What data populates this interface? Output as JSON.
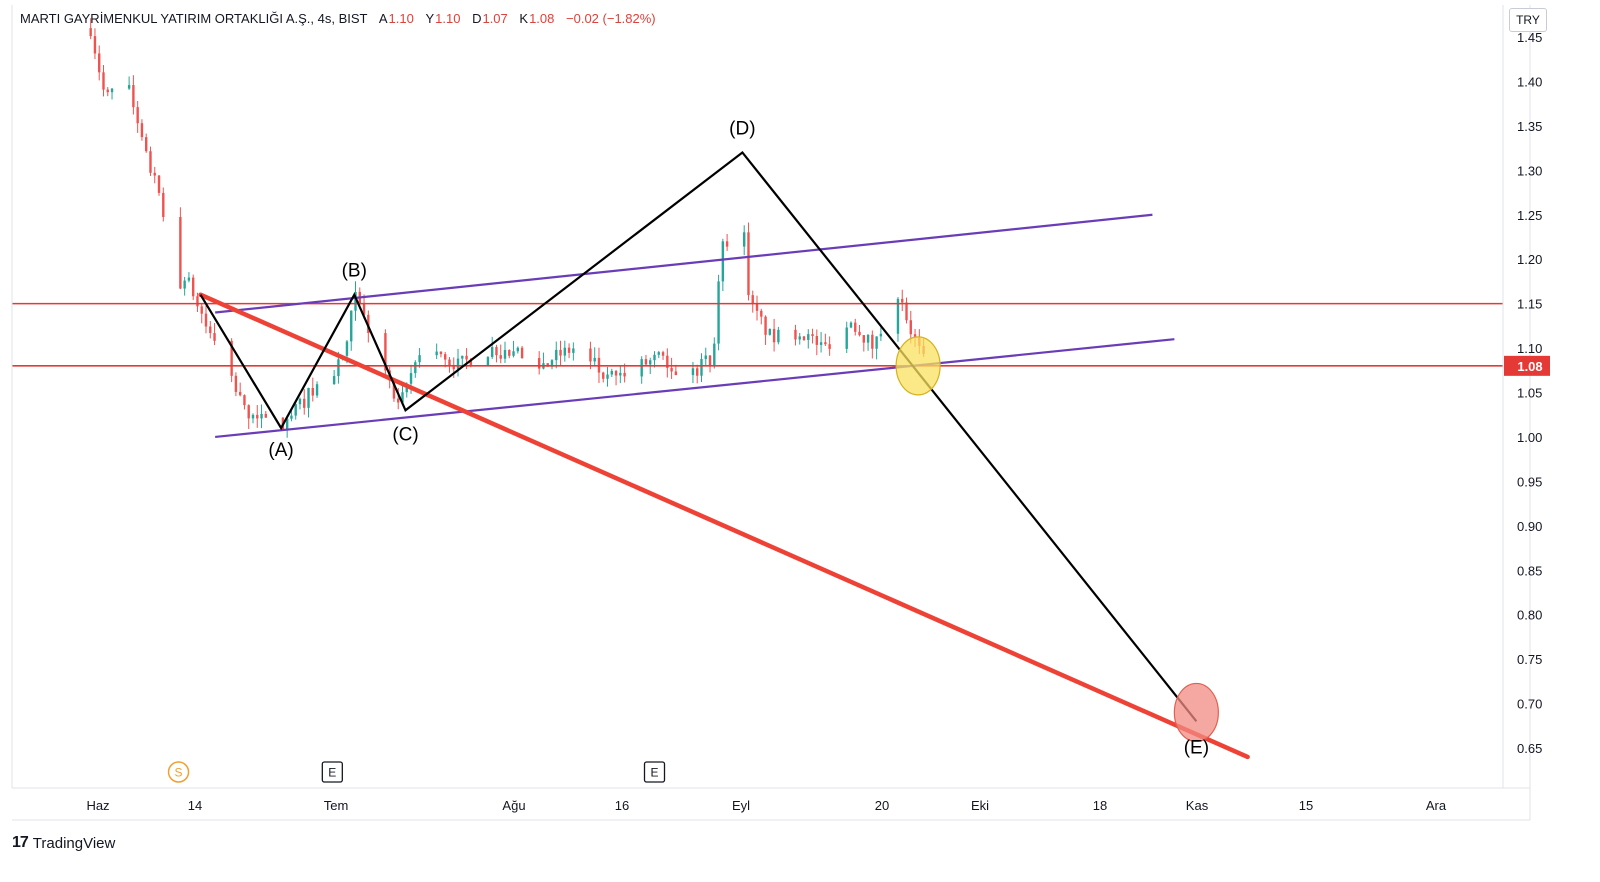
{
  "header": {
    "symbol": "MARTI GAYRİMENKUL YATIRIM ORTAKLIĞI A.Ş., 4s, BIST",
    "open_label": "A",
    "open": "1.10",
    "high_label": "Y",
    "high": "1.10",
    "low_label": "D",
    "low": "1.07",
    "close_label": "K",
    "close": "1.08",
    "change": "−0.02 (−1.82%)"
  },
  "currency": "TRY",
  "brand": {
    "logo": "17",
    "name": "TradingView"
  },
  "colors": {
    "bull": "#26a69a",
    "bear": "#ef5350",
    "level": "#e53935",
    "channel": "#6a3db8",
    "trend": "#ef4236",
    "wave": "#000000",
    "highlight_yellow": "#f9e05e",
    "highlight_red": "#f28b82"
  },
  "chart_data": {
    "type": "candlestick",
    "y_axis": {
      "min": 0.63,
      "max": 1.46,
      "ticks": [
        "1.45",
        "1.40",
        "1.35",
        "1.30",
        "1.25",
        "1.20",
        "1.15",
        "1.10",
        "1.05",
        "1.00",
        "0.95",
        "0.90",
        "0.85",
        "0.80",
        "0.75",
        "0.70",
        "0.65"
      ]
    },
    "x_axis": {
      "labels": [
        "Haz",
        "14",
        "Tem",
        "Ağu",
        "16",
        "Eyl",
        "20",
        "Eki",
        "18",
        "Kas",
        "15",
        "Ara"
      ]
    },
    "current_price": "1.08",
    "horizontal_levels": [
      1.15,
      1.08
    ],
    "price_path": [
      {
        "d": "2023-05-31",
        "p": 1.46
      },
      {
        "d": "2023-06-02",
        "p": 1.38
      },
      {
        "d": "2023-06-05",
        "p": 1.4
      },
      {
        "d": "2023-06-07",
        "p": 1.33
      },
      {
        "d": "2023-06-09",
        "p": 1.28
      },
      {
        "d": "2023-06-12",
        "p": 1.17
      },
      {
        "d": "2023-06-13",
        "p": 1.18
      },
      {
        "d": "2023-06-14",
        "p": 1.16
      },
      {
        "d": "2023-06-16",
        "p": 1.12
      },
      {
        "d": "2023-06-19",
        "p": 1.07
      },
      {
        "d": "2023-06-21",
        "p": 1.03
      },
      {
        "d": "2023-06-23",
        "p": 1.02
      },
      {
        "d": "2023-06-26",
        "p": 1.01
      },
      {
        "d": "2023-06-28",
        "p": 1.03
      },
      {
        "d": "2023-06-30",
        "p": 1.05
      },
      {
        "d": "2023-07-03",
        "p": 1.07
      },
      {
        "d": "2023-07-05",
        "p": 1.1
      },
      {
        "d": "2023-07-06",
        "p": 1.16
      },
      {
        "d": "2023-07-08",
        "p": 1.12
      },
      {
        "d": "2023-07-10",
        "p": 1.08
      },
      {
        "d": "2023-07-12",
        "p": 1.03
      },
      {
        "d": "2023-07-15",
        "p": 1.1
      },
      {
        "d": "2023-07-20",
        "p": 1.08
      },
      {
        "d": "2023-07-25",
        "p": 1.1
      },
      {
        "d": "2023-07-31",
        "p": 1.08
      },
      {
        "d": "2023-08-05",
        "p": 1.1
      },
      {
        "d": "2023-08-10",
        "p": 1.06
      },
      {
        "d": "2023-08-14",
        "p": 1.08
      },
      {
        "d": "2023-08-17",
        "p": 1.09
      },
      {
        "d": "2023-08-21",
        "p": 1.07
      },
      {
        "d": "2023-08-24",
        "p": 1.09
      },
      {
        "d": "2023-08-25",
        "p": 1.21
      },
      {
        "d": "2023-08-28",
        "p": 1.25
      },
      {
        "d": "2023-08-29",
        "p": 1.15
      },
      {
        "d": "2023-09-01",
        "p": 1.11
      },
      {
        "d": "2023-09-05",
        "p": 1.12
      },
      {
        "d": "2023-09-08",
        "p": 1.1
      },
      {
        "d": "2023-09-12",
        "p": 1.13
      },
      {
        "d": "2023-09-15",
        "p": 1.1
      },
      {
        "d": "2023-09-18",
        "p": 1.17
      },
      {
        "d": "2023-09-20",
        "p": 1.12
      },
      {
        "d": "2023-09-22",
        "p": 1.08
      }
    ],
    "wave_points": [
      {
        "label": "",
        "d": "2023-06-15",
        "p": 1.16
      },
      {
        "label": "(A)",
        "d": "2023-06-26",
        "p": 1.01
      },
      {
        "label": "(B)",
        "d": "2023-07-06",
        "p": 1.16
      },
      {
        "label": "(C)",
        "d": "2023-07-13",
        "p": 1.03
      },
      {
        "label": "(D)",
        "d": "2023-08-28",
        "p": 1.32
      },
      {
        "label": "(E)",
        "d": "2023-10-29",
        "p": 0.68
      }
    ],
    "channel_upper": [
      {
        "d": "2023-06-17",
        "p": 1.14
      },
      {
        "d": "2023-10-23",
        "p": 1.25
      }
    ],
    "channel_lower": [
      {
        "d": "2023-06-17",
        "p": 1.0
      },
      {
        "d": "2023-10-26",
        "p": 1.11
      }
    ],
    "trendline": [
      {
        "d": "2023-06-15",
        "p": 1.16
      },
      {
        "d": "2023-11-05",
        "p": 0.64
      }
    ],
    "highlights": [
      {
        "type": "yellow",
        "d": "2023-09-21",
        "p": 1.08
      },
      {
        "type": "red",
        "d": "2023-10-29",
        "p": 0.69
      }
    ],
    "event_markers": [
      {
        "label": "S",
        "d": "2023-06-12"
      },
      {
        "label": "E",
        "d": "2023-07-03"
      },
      {
        "label": "E",
        "d": "2023-08-16"
      }
    ]
  }
}
